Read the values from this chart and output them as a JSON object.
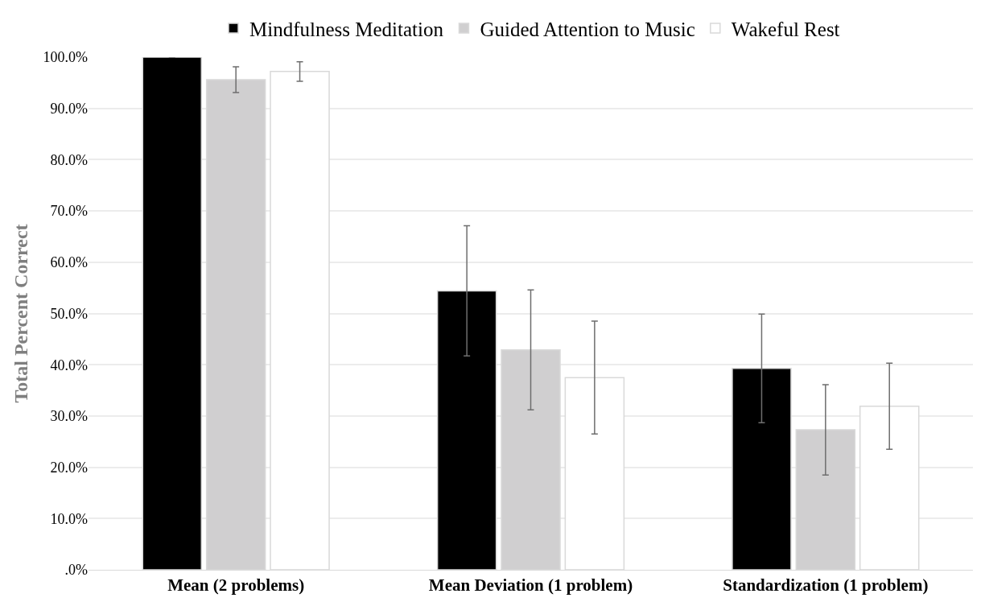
{
  "chart_data": {
    "type": "bar",
    "ylabel": "Total Percent Correct",
    "categories": [
      "Mean (2 problems)",
      "Mean Deviation (1 problem)",
      "Standardization (1 problem)"
    ],
    "series": [
      {
        "name": "Mindfulness Meditation",
        "color": "#000000",
        "values": [
          100,
          54.4,
          39.3
        ],
        "errors": [
          0,
          12.7,
          10.6
        ]
      },
      {
        "name": "Guided Attention to Music",
        "color": "#d0cfd0",
        "values": [
          95.6,
          42.9,
          27.3
        ],
        "errors": [
          2.5,
          11.7,
          8.8
        ]
      },
      {
        "name": "Wakeful Rest",
        "color": "#ffffff",
        "values": [
          97.2,
          37.5,
          31.9
        ],
        "errors": [
          1.9,
          11,
          8.4
        ]
      }
    ],
    "ylim": [
      0,
      100
    ],
    "yticks": [
      {
        "value": 0,
        "label": ".0%"
      },
      {
        "value": 10,
        "label": "10.0%"
      },
      {
        "value": 20,
        "label": "20.0%"
      },
      {
        "value": 30,
        "label": "30.0%"
      },
      {
        "value": 40,
        "label": "40.0%"
      },
      {
        "value": 50,
        "label": "50.0%"
      },
      {
        "value": 60,
        "label": "60.0%"
      },
      {
        "value": 70,
        "label": "70.0%"
      },
      {
        "value": 80,
        "label": "80.0%"
      },
      {
        "value": 90,
        "label": "90.0%"
      },
      {
        "value": 100,
        "label": "100.0%"
      }
    ],
    "grid": true,
    "legend": "top"
  }
}
